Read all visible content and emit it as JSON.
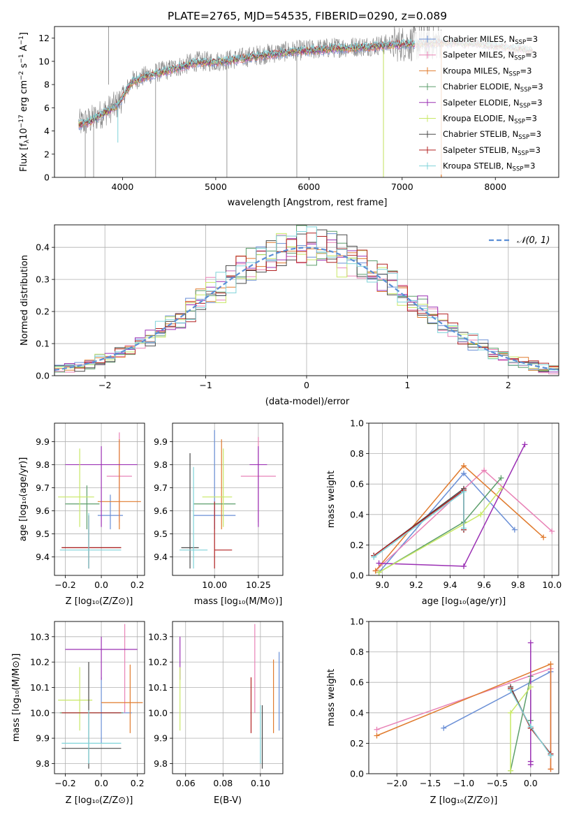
{
  "title": "PLATE=2765, MJD=54535, FIBERID=0290, z=0.089",
  "colors": {
    "chabrier_miles": "#6a8fd6",
    "salpeter_miles": "#e882b6",
    "kroupa_miles": "#e07b2e",
    "chabrier_elodie": "#5c9e6b",
    "salpeter_elodie": "#9b30b4",
    "kroupa_elodie": "#c8e866",
    "chabrier_stelib": "#4a4a4a",
    "salpeter_stelib": "#b22222",
    "kroupa_stelib": "#7fd3d9",
    "observed": "#808080"
  },
  "legend": {
    "spectrum": [
      "Chabrier MILES, N<sub>SSP</sub>=3"
    ],
    "entries": [
      {
        "pre": "Chabrier MILES, N",
        "sub": "SSP",
        "post": "=3",
        "key": "chabrier_miles"
      },
      {
        "pre": "Salpeter MILES, N",
        "sub": "SSP",
        "post": "=3",
        "key": "salpeter_miles"
      },
      {
        "pre": "Kroupa MILES, N",
        "sub": "SSP",
        "post": "=3",
        "key": "kroupa_miles"
      },
      {
        "pre": "Chabrier ELODIE, N",
        "sub": "SSP",
        "post": "=3",
        "key": "chabrier_elodie"
      },
      {
        "pre": "Salpeter ELODIE, N",
        "sub": "SSP",
        "post": "=3",
        "key": "salpeter_elodie"
      },
      {
        "pre": "Kroupa ELODIE, N",
        "sub": "SSP",
        "post": "=3",
        "key": "kroupa_elodie"
      },
      {
        "pre": "Chabrier STELIB, N",
        "sub": "SSP",
        "post": "=3",
        "key": "chabrier_stelib"
      },
      {
        "pre": "Salpeter STELIB, N",
        "sub": "SSP",
        "post": "=3",
        "key": "salpeter_stelib"
      },
      {
        "pre": "Kroupa STELIB, N",
        "sub": "SSP",
        "post": "=3",
        "key": "kroupa_stelib"
      }
    ],
    "normal": "𝒩(0, 1)"
  },
  "chart_data": [
    {
      "type": "line",
      "panel": "spectrum",
      "xlabel": "wavelength [Angstrom, rest frame]",
      "ylabel": "Flux [fλ10⁻¹⁷ erg cm⁻² s⁻¹ A⁻¹]",
      "xlim": [
        3270,
        8680
      ],
      "ylim": [
        0,
        13.0
      ],
      "xticks": [
        4000,
        5000,
        6000,
        7000,
        8000
      ],
      "yticks": [
        0,
        2,
        4,
        6,
        8,
        10,
        12
      ],
      "observed_anchors": {
        "x": [
          3530,
          3650,
          3800,
          3950,
          4100,
          4300,
          4500,
          4800,
          5000,
          5200,
          5500,
          5800,
          6000,
          6300,
          6600,
          6900,
          7200,
          7400
        ],
        "y": [
          4.6,
          4.9,
          5.6,
          6.3,
          8.3,
          8.9,
          9.3,
          10.0,
          10.0,
          10.2,
          10.6,
          10.9,
          11.0,
          11.2,
          11.3,
          11.5,
          11.6,
          11.7
        ]
      },
      "model_anchors": {
        "x": [
          3530,
          3650,
          3800,
          3950,
          4100,
          4300,
          4500,
          4800,
          5000,
          5200,
          5500,
          5800,
          6000,
          6300,
          6600,
          6900,
          7200,
          7500,
          7800,
          8100,
          8400
        ],
        "y": [
          4.5,
          4.8,
          5.5,
          6.2,
          8.2,
          8.8,
          9.2,
          9.9,
          9.9,
          10.1,
          10.5,
          10.8,
          10.9,
          11.1,
          11.2,
          11.4,
          11.5,
          11.6,
          11.5,
          11.2,
          10.9
        ]
      }
    },
    {
      "type": "histogram",
      "panel": "residuals",
      "xlabel": "(data-model)/error",
      "ylabel": "Normed distribution",
      "xlim": [
        -2.5,
        2.5
      ],
      "ylim": [
        0,
        0.47
      ],
      "xticks": [
        -2,
        -1,
        0,
        1,
        2
      ],
      "yticks": [
        0.0,
        0.1,
        0.2,
        0.3,
        0.4
      ],
      "bin_width": 0.1,
      "reference": "normal(0,1)"
    },
    {
      "type": "scatter",
      "panel": "age_vs_Z",
      "xlabel": "Z [log₁₀(Z/Z⊙)]",
      "ylabel": "age  [log₁₀(age/yr)]",
      "xlim": [
        -0.26,
        0.24
      ],
      "ylim": [
        9.32,
        9.98
      ],
      "xticks": [
        -0.2,
        0.0,
        0.2
      ],
      "yticks": [
        9.4,
        9.5,
        9.6,
        9.7,
        9.8,
        9.9
      ],
      "points": [
        {
          "key": "chabrier_miles",
          "x": 0.05,
          "y": 9.58,
          "xerr": [
            0.07,
            0.07
          ],
          "yerr": [
            0.06,
            0.09
          ]
        },
        {
          "key": "salpeter_miles",
          "x": 0.1,
          "y": 9.75,
          "xerr": [
            0.07,
            0.07
          ],
          "yerr": [
            0.2,
            0.19
          ]
        },
        {
          "key": "kroupa_miles",
          "x": 0.1,
          "y": 9.64,
          "xerr": [
            0.12,
            0.12
          ],
          "yerr": [
            0.12,
            0.27
          ]
        },
        {
          "key": "chabrier_elodie",
          "x": -0.08,
          "y": 9.63,
          "xerr": [
            0.12,
            0.07
          ],
          "yerr": [
            0.11,
            0.08
          ]
        },
        {
          "key": "salpeter_elodie",
          "x": 0.0,
          "y": 9.8,
          "xerr": [
            0.2,
            0.2
          ],
          "yerr": [
            0.27,
            0.08
          ]
        },
        {
          "key": "kroupa_elodie",
          "x": -0.12,
          "y": 9.66,
          "xerr": [
            0.12,
            0.08
          ],
          "yerr": [
            0.13,
            0.21
          ]
        },
        {
          "key": "chabrier_stelib",
          "x": -0.07,
          "y": 9.44,
          "xerr": [
            0.15,
            0.18
          ],
          "yerr": [
            0.09,
            0.14
          ]
        },
        {
          "key": "salpeter_stelib",
          "x": -0.07,
          "y": 9.44,
          "xerr": [
            0.15,
            0.18
          ],
          "yerr": [
            0.09,
            0.14
          ]
        },
        {
          "key": "kroupa_stelib",
          "x": -0.07,
          "y": 9.43,
          "xerr": [
            0.16,
            0.18
          ],
          "yerr": [
            0.08,
            0.16
          ]
        }
      ]
    },
    {
      "type": "scatter",
      "panel": "age_vs_mass",
      "xlabel": "mass [log₁₀(M/M⊙)]",
      "xlim": [
        9.76,
        10.39
      ],
      "ylim": [
        9.32,
        9.98
      ],
      "xticks": [
        10.0,
        10.25
      ],
      "tick_labels": [
        "10.00",
        "10.25"
      ],
      "yticks": [
        9.4,
        9.5,
        9.6,
        9.7,
        9.8,
        9.9
      ],
      "points": [
        {
          "key": "chabrier_miles",
          "x": 10.0,
          "y": 9.58,
          "xerr": [
            0.12,
            0.12
          ],
          "yerr": [
            0.06,
            0.37
          ]
        },
        {
          "key": "salpeter_miles",
          "x": 10.25,
          "y": 9.75,
          "xerr": [
            0.1,
            0.1
          ],
          "yerr": [
            0.2,
            0.17
          ]
        },
        {
          "key": "kroupa_miles",
          "x": 10.04,
          "y": 9.64,
          "xerr": [
            0.0,
            0.0
          ],
          "yerr": [
            0.12,
            0.27
          ]
        },
        {
          "key": "chabrier_elodie",
          "x": 10.0,
          "y": 9.63,
          "xerr": [
            0.12,
            0.12
          ],
          "yerr": [
            0.0,
            0.0
          ]
        },
        {
          "key": "salpeter_elodie",
          "x": 10.25,
          "y": 9.8,
          "xerr": [
            0.05,
            0.05
          ],
          "yerr": [
            0.27,
            0.08
          ]
        },
        {
          "key": "kroupa_elodie",
          "x": 10.05,
          "y": 9.66,
          "xerr": [
            0.12,
            0.05
          ],
          "yerr": [
            0.13,
            0.21
          ]
        },
        {
          "key": "chabrier_stelib",
          "x": 9.86,
          "y": 9.44,
          "xerr": [
            0.05,
            0.05
          ],
          "yerr": [
            0.09,
            0.41
          ]
        },
        {
          "key": "salpeter_stelib",
          "x": 10.0,
          "y": 9.43,
          "xerr": [
            0.0,
            0.1
          ],
          "yerr": [
            0.08,
            0.21
          ]
        },
        {
          "key": "kroupa_stelib",
          "x": 9.88,
          "y": 9.43,
          "xerr": [
            0.08,
            0.08
          ],
          "yerr": [
            0.08,
            0.36
          ]
        }
      ]
    },
    {
      "type": "line",
      "panel": "mass_weight_vs_age",
      "xlabel": "age  [log₁₀(age/yr)]",
      "ylabel": "mass weight",
      "xlim": [
        8.92,
        10.04
      ],
      "ylim": [
        0,
        1.0
      ],
      "xticks": [
        9.0,
        9.2,
        9.4,
        9.6,
        9.8,
        10.0
      ],
      "yticks": [
        0.0,
        0.2,
        0.4,
        0.6,
        0.8,
        1.0
      ],
      "series": [
        {
          "key": "chabrier_miles",
          "x": [
            8.98,
            9.48,
            9.78
          ],
          "y": [
            0.02,
            0.67,
            0.3
          ]
        },
        {
          "key": "salpeter_miles",
          "x": [
            8.96,
            9.6,
            10.0
          ],
          "y": [
            0.03,
            0.69,
            0.29
          ]
        },
        {
          "key": "kroupa_miles",
          "x": [
            8.96,
            9.48,
            9.95
          ],
          "y": [
            0.03,
            0.72,
            0.25
          ]
        },
        {
          "key": "chabrier_elodie",
          "x": [
            8.98,
            9.48,
            9.7
          ],
          "y": [
            0.02,
            0.35,
            0.64
          ]
        },
        {
          "key": "salpeter_elodie",
          "x": [
            8.98,
            9.48,
            9.84
          ],
          "y": [
            0.08,
            0.06,
            0.86
          ]
        },
        {
          "key": "kroupa_elodie",
          "x": [
            8.98,
            9.58,
            9.7
          ],
          "y": [
            0.02,
            0.4,
            0.57
          ]
        },
        {
          "key": "chabrier_stelib",
          "x": [
            8.95,
            9.48,
            9.48
          ],
          "y": [
            0.13,
            0.57,
            0.3
          ]
        },
        {
          "key": "salpeter_stelib",
          "x": [
            8.95,
            9.48,
            9.48
          ],
          "y": [
            0.13,
            0.56,
            0.3
          ]
        },
        {
          "key": "kroupa_stelib",
          "x": [
            8.95,
            9.48,
            9.48
          ],
          "y": [
            0.12,
            0.55,
            0.31
          ]
        }
      ]
    },
    {
      "type": "scatter",
      "panel": "mass_vs_Z",
      "xlabel": "Z [log₁₀(Z/Z⊙)]",
      "ylabel": "mass [log₁₀(M/M⊙)]",
      "xlim": [
        -0.26,
        0.24
      ],
      "ylim": [
        9.76,
        10.36
      ],
      "xticks": [
        -0.2,
        0.0,
        0.2
      ],
      "yticks": [
        9.8,
        9.9,
        10.0,
        10.1,
        10.2,
        10.3
      ],
      "points": [
        {
          "key": "chabrier_miles",
          "x": 0.0,
          "y": 10.0,
          "xerr": [
            0.0,
            0.17
          ],
          "yerr": [
            0.12,
            0.14
          ]
        },
        {
          "key": "salpeter_miles",
          "x": 0.13,
          "y": 10.25,
          "xerr": [
            0.0,
            0.0
          ],
          "yerr": [
            0.25,
            0.1
          ]
        },
        {
          "key": "kroupa_miles",
          "x": 0.16,
          "y": 10.04,
          "xerr": [
            0.16,
            0.07
          ],
          "yerr": [
            0.12,
            0.15
          ]
        },
        {
          "key": "chabrier_elodie",
          "x": -0.08,
          "y": 10.0,
          "xerr": [
            0.15,
            0.2
          ],
          "yerr": [
            0.0,
            0.0
          ]
        },
        {
          "key": "salpeter_elodie",
          "x": 0.0,
          "y": 10.25,
          "xerr": [
            0.2,
            0.2
          ],
          "yerr": [
            0.12,
            0.05
          ]
        },
        {
          "key": "kroupa_elodie",
          "x": -0.12,
          "y": 10.05,
          "xerr": [
            0.12,
            0.07
          ],
          "yerr": [
            0.12,
            0.13
          ]
        },
        {
          "key": "chabrier_stelib",
          "x": -0.07,
          "y": 9.86,
          "xerr": [
            0.15,
            0.18
          ],
          "yerr": [
            0.08,
            0.34
          ]
        },
        {
          "key": "salpeter_stelib",
          "x": -0.07,
          "y": 10.0,
          "xerr": [
            0.15,
            0.18
          ],
          "yerr": [
            0.0,
            0.0
          ]
        },
        {
          "key": "kroupa_stelib",
          "x": -0.07,
          "y": 9.88,
          "xerr": [
            0.15,
            0.18
          ],
          "yerr": [
            0.08,
            0.13
          ]
        }
      ]
    },
    {
      "type": "scatter",
      "panel": "mass_vs_ebv",
      "xlabel": "E(B-V)",
      "xlim": [
        0.053,
        0.112
      ],
      "ylim": [
        9.76,
        10.36
      ],
      "xticks": [
        0.06,
        0.08,
        0.1
      ],
      "tick_labels": [
        "0.06",
        "0.08",
        "0.10"
      ],
      "yticks": [
        9.8,
        9.9,
        10.0,
        10.1,
        10.2,
        10.3
      ],
      "points": [
        {
          "key": "chabrier_miles",
          "x": 0.11,
          "y": 10.05,
          "yerr": [
            0.12,
            0.19
          ]
        },
        {
          "key": "salpeter_miles",
          "x": 0.097,
          "y": 10.25,
          "yerr": [
            0.25,
            0.1
          ]
        },
        {
          "key": "kroupa_miles",
          "x": 0.107,
          "y": 10.04,
          "yerr": [
            0.12,
            0.17
          ]
        },
        {
          "key": "salpeter_elodie",
          "x": 0.057,
          "y": 10.25,
          "yerr": [
            0.12,
            0.05
          ]
        },
        {
          "key": "kroupa_elodie",
          "x": 0.057,
          "y": 10.05,
          "yerr": [
            0.12,
            0.13
          ]
        },
        {
          "key": "chabrier_stelib",
          "x": 0.101,
          "y": 9.86,
          "yerr": [
            0.08,
            0.17
          ]
        },
        {
          "key": "salpeter_stelib",
          "x": 0.095,
          "y": 10.0,
          "yerr": [
            0.08,
            0.14
          ]
        },
        {
          "key": "kroupa_stelib",
          "x": 0.1,
          "y": 9.88,
          "yerr": [
            0.08,
            0.15
          ]
        }
      ]
    },
    {
      "type": "line",
      "panel": "mass_weight_vs_Z",
      "xlabel": "Z [log₁₀(Z/Z⊙)]",
      "ylabel": "mass weight",
      "xlim": [
        -2.42,
        0.42
      ],
      "ylim": [
        0,
        1.0
      ],
      "xticks": [
        -2.0,
        -1.5,
        -1.0,
        -0.5,
        0.0
      ],
      "yticks": [
        0.0,
        0.2,
        0.4,
        0.6,
        0.8,
        1.0
      ],
      "series": [
        {
          "key": "chabrier_miles",
          "x": [
            -1.3,
            0.3,
            0.3
          ],
          "y": [
            0.3,
            0.67,
            0.12
          ]
        },
        {
          "key": "salpeter_miles",
          "x": [
            -2.3,
            0.3,
            0.3
          ],
          "y": [
            0.29,
            0.69,
            0.03
          ]
        },
        {
          "key": "kroupa_miles",
          "x": [
            -2.3,
            0.3,
            0.3
          ],
          "y": [
            0.25,
            0.72,
            0.03
          ]
        },
        {
          "key": "chabrier_elodie",
          "x": [
            -0.3,
            0.0,
            0.0
          ],
          "y": [
            0.02,
            0.64,
            0.35
          ]
        },
        {
          "key": "salpeter_elodie",
          "x": [
            0.0,
            0.0,
            0.0
          ],
          "y": [
            0.86,
            0.06,
            0.08
          ]
        },
        {
          "key": "kroupa_elodie",
          "x": [
            -0.3,
            -0.3,
            0.0
          ],
          "y": [
            0.02,
            0.4,
            0.57
          ]
        },
        {
          "key": "chabrier_stelib",
          "x": [
            -0.3,
            0.0,
            0.3
          ],
          "y": [
            0.57,
            0.3,
            0.13
          ]
        },
        {
          "key": "salpeter_stelib",
          "x": [
            -0.3,
            0.0,
            0.3
          ],
          "y": [
            0.56,
            0.3,
            0.13
          ]
        },
        {
          "key": "kroupa_stelib",
          "x": [
            -0.3,
            0.0,
            0.3
          ],
          "y": [
            0.55,
            0.31,
            0.12
          ]
        }
      ]
    }
  ]
}
